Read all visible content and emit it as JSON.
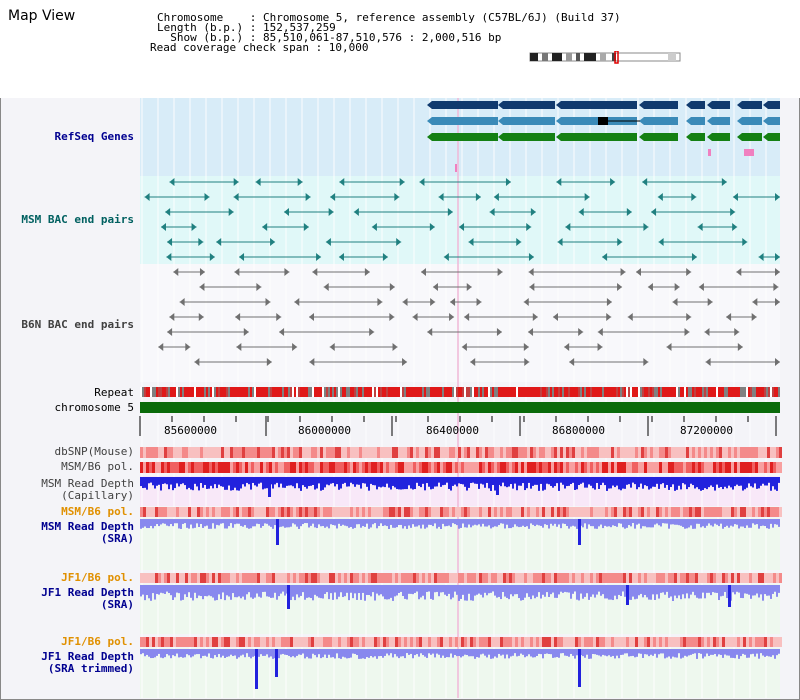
{
  "header": {
    "title": "Map View",
    "info_lines": [
      "Chromosome    : Chromosome 5, reference assembly (C57BL/6J) (Build 37)",
      "Length (b.p.) : 152,537,259",
      "  Show (b.p.) : 85,510,061-87,510,576 : 2,000,516 bp",
      "Read coverage check span : 10,000"
    ]
  },
  "tracks": {
    "refseq": "RefSeq Genes",
    "msm_bac": "MSM BAC end pairs",
    "b6n_bac": "B6N BAC end pairs",
    "repeat": "Repeat",
    "chromosome": "chromosome 5",
    "dbsnp": "dbSNP(Mouse)",
    "msm_b6_pol": "MSM/B6 pol.",
    "msm_depth_cap_1": "MSM Read Depth",
    "msm_depth_cap_2": "(Capillary)",
    "msm_b6_pol2": "MSM/B6 pol.",
    "msm_depth_sra_1": "MSM Read Depth",
    "msm_depth_sra_2": "(SRA)",
    "jf1_pol": "JF1/B6 pol.",
    "jf1_depth_sra_1": "JF1 Read Depth",
    "jf1_depth_sra_2": "(SRA)",
    "jf1_pol2": "JF1/B6 pol.",
    "jf1_depth_trim_1": "JF1 Read Depth",
    "jf1_depth_trim_2": "(SRA trimmed)"
  },
  "axis": {
    "ticks": [
      "85600000",
      "86000000",
      "86400000",
      "86800000",
      "87200000"
    ]
  },
  "colors": {
    "refseq_dark": "#103a6e",
    "refseq_mid": "#3a8ab8",
    "refseq_green": "#148014",
    "msm_bac": "#208080",
    "b6n_bac": "#707070",
    "chromosome": "#0a6a0a",
    "depth_blue": "#2222dd",
    "depth_light": "#8888ee",
    "label_blue": "#000090",
    "label_teal": "#006060",
    "label_orange": "#e09000",
    "label_gray": "#404040"
  }
}
